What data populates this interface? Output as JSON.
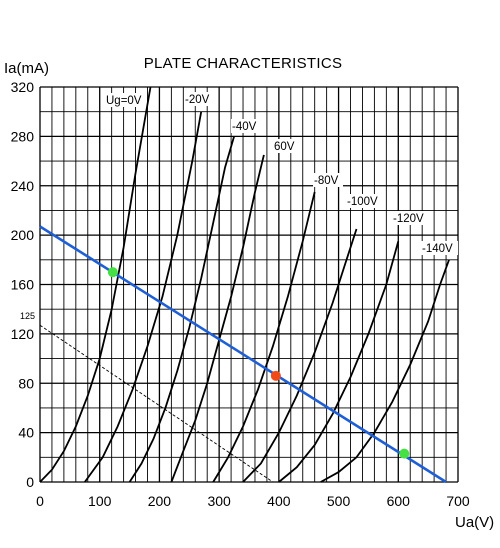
{
  "chart_data": {
    "type": "line",
    "title": "PLATE CHARACTERISTICS",
    "xlabel": "Ua(V)",
    "ylabel": "Ia(mA)",
    "xlim": [
      0,
      700
    ],
    "ylim": [
      0,
      320
    ],
    "x_ticks": [
      0,
      100,
      200,
      300,
      400,
      500,
      600,
      700
    ],
    "y_ticks": [
      0,
      40,
      80,
      120,
      160,
      200,
      240,
      280,
      320
    ],
    "grid": true,
    "series": [
      {
        "name": "Ug=0V",
        "x": [
          0,
          20,
          40,
          60,
          80,
          100,
          120,
          140,
          160,
          185
        ],
        "y": [
          0,
          10,
          25,
          45,
          70,
          100,
          140,
          190,
          250,
          320
        ]
      },
      {
        "name": "-20V",
        "x": [
          75,
          105,
          130,
          155,
          180,
          205,
          230,
          255,
          270
        ],
        "y": [
          0,
          20,
          45,
          75,
          110,
          150,
          200,
          260,
          300
        ]
      },
      {
        "name": "-40V",
        "x": [
          150,
          170,
          190,
          210,
          230,
          250,
          270,
          290,
          310,
          325
        ],
        "y": [
          0,
          15,
          35,
          60,
          90,
          125,
          165,
          210,
          255,
          280
        ]
      },
      {
        "name": "60V",
        "x": [
          220,
          240,
          260,
          280,
          300,
          320,
          340,
          360,
          375
        ],
        "y": [
          0,
          25,
          50,
          80,
          115,
          150,
          190,
          235,
          265
        ]
      },
      {
        "name": "-80V",
        "x": [
          290,
          315,
          340,
          365,
          390,
          415,
          440,
          460
        ],
        "y": [
          0,
          20,
          45,
          75,
          110,
          150,
          195,
          235
        ]
      },
      {
        "name": "-100V",
        "x": [
          340,
          370,
          400,
          430,
          460,
          490,
          510,
          530
        ],
        "y": [
          0,
          15,
          40,
          70,
          105,
          145,
          175,
          205
        ]
      },
      {
        "name": "-120V",
        "x": [
          400,
          430,
          460,
          490,
          520,
          550,
          580,
          600
        ],
        "y": [
          0,
          12,
          30,
          55,
          85,
          120,
          160,
          195
        ]
      },
      {
        "name": "-140V",
        "x": [
          470,
          500,
          530,
          560,
          590,
          620,
          650,
          670,
          685
        ],
        "y": [
          0,
          8,
          20,
          40,
          65,
          95,
          130,
          160,
          180
        ]
      }
    ],
    "load_line": {
      "x": [
        0,
        680
      ],
      "y": [
        207,
        0
      ],
      "color": "#1f5fd6"
    },
    "dashed_line": {
      "x": [
        0,
        390
      ],
      "y": [
        127,
        0
      ],
      "label": "125"
    },
    "points": [
      {
        "x": 122,
        "y": 170,
        "color": "#44e044"
      },
      {
        "x": 395,
        "y": 86,
        "color": "#f04a1a"
      },
      {
        "x": 610,
        "y": 23,
        "color": "#44e044"
      }
    ]
  }
}
